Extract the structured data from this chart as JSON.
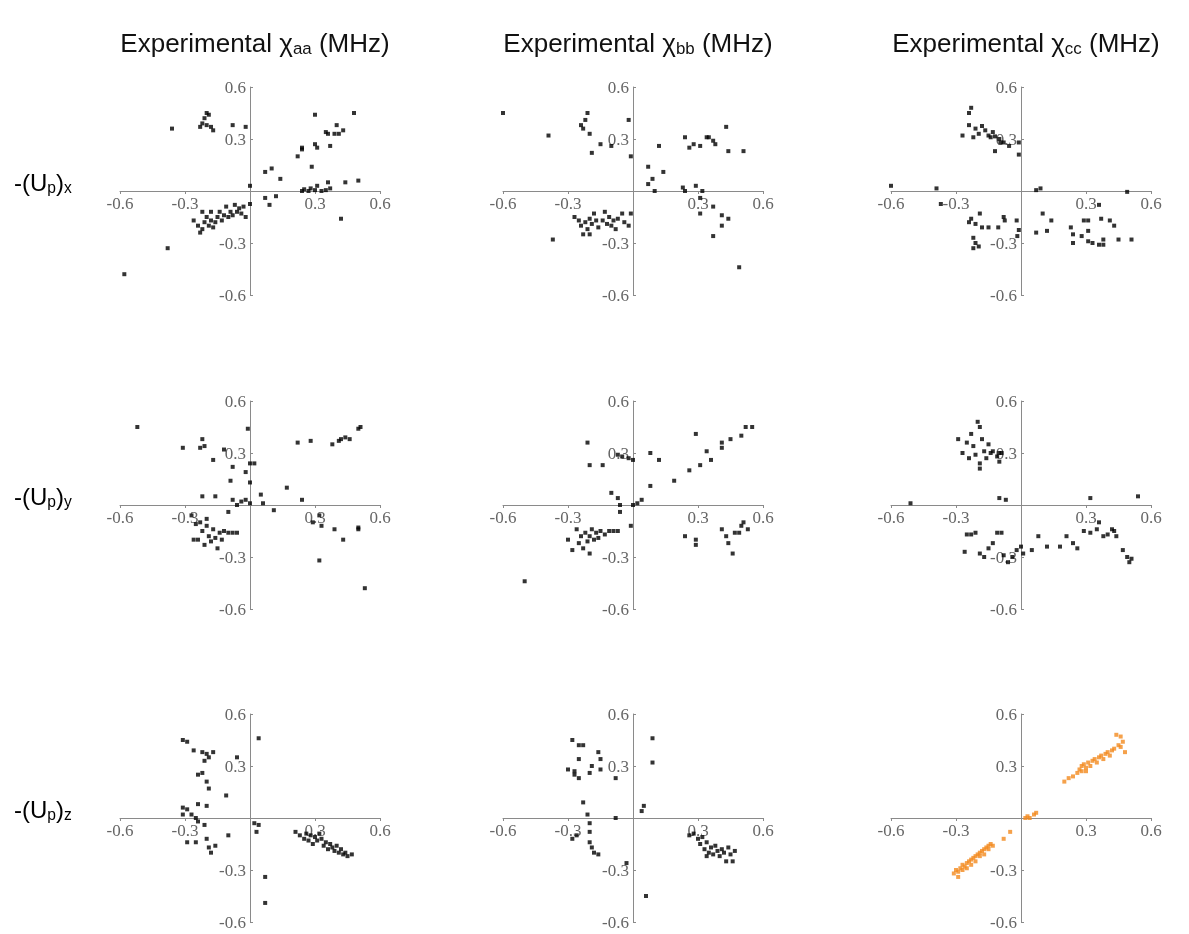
{
  "chart_data": [
    {
      "type": "scatter",
      "title": "Experimental χ$_{aa}$ (MHz)",
      "ylabel": "-(U$_{p}$)$_{x}$",
      "color": "#000000",
      "marker": "square",
      "xlim": [
        -0.6,
        0.6
      ],
      "ylim": [
        -0.6,
        0.6
      ],
      "xticks": [
        -0.6,
        -0.3,
        0.3,
        0.6
      ],
      "yticks": [
        -0.6,
        -0.3,
        0.3,
        0.6
      ],
      "x": [
        -0.36,
        -0.2,
        -0.19,
        -0.21,
        -0.22,
        -0.23,
        -0.2,
        -0.18,
        -0.17,
        -0.08,
        -0.02,
        0.3,
        0.48,
        0.35,
        0.4,
        0.36,
        0.39,
        0.41,
        0.43,
        0.3,
        0.31,
        0.37,
        0.22,
        0.24,
        0.24,
        0.285,
        0.07,
        0.1,
        0.14,
        0.0,
        0.24,
        0.25,
        0.27,
        0.28,
        0.3,
        0.31,
        0.33,
        0.35,
        0.36,
        0.37,
        0.44,
        0.5,
        0.42,
        0.07,
        0.12,
        0.09,
        0.0,
        -0.02,
        -0.58,
        -0.38,
        -0.26,
        -0.24,
        -0.23,
        -0.22,
        -0.21,
        -0.2,
        -0.19,
        -0.18,
        -0.17,
        -0.16,
        -0.15,
        -0.14,
        -0.13,
        -0.12,
        -0.11,
        -0.1,
        -0.09,
        -0.08,
        -0.07,
        -0.06,
        -0.05,
        -0.04,
        -0.03,
        -0.22,
        -0.18
      ],
      "values": [
        0.36,
        0.45,
        0.44,
        0.42,
        0.39,
        0.37,
        0.38,
        0.37,
        0.35,
        0.38,
        0.37,
        0.44,
        0.45,
        0.34,
        0.38,
        0.33,
        0.33,
        0.33,
        0.35,
        0.27,
        0.25,
        0.26,
        0.2,
        0.24,
        0.25,
        0.14,
        0.11,
        0.13,
        0.07,
        0.03,
        0.0,
        0.01,
        0.0,
        0.015,
        0.005,
        0.03,
        0.0,
        0.005,
        0.05,
        0.015,
        0.05,
        0.06,
        -0.16,
        -0.04,
        -0.03,
        -0.08,
        -0.075,
        -0.15,
        -0.48,
        -0.33,
        -0.17,
        -0.2,
        -0.24,
        -0.22,
        -0.18,
        -0.15,
        -0.2,
        -0.17,
        -0.21,
        -0.18,
        -0.15,
        -0.12,
        -0.17,
        -0.14,
        -0.09,
        -0.15,
        -0.12,
        -0.14,
        -0.08,
        -0.12,
        -0.1,
        -0.13,
        -0.09,
        -0.12,
        -0.12
      ]
    },
    {
      "type": "scatter",
      "title": "Experimental χ$_{bb}$ (MHz)",
      "color": "#000000",
      "marker": "square",
      "xlim": [
        -0.6,
        0.6
      ],
      "ylim": [
        -0.6,
        0.6
      ],
      "xticks": [
        -0.6,
        -0.3,
        0.3,
        0.6
      ],
      "yticks": [
        -0.6,
        -0.3,
        0.3,
        0.6
      ],
      "x": [
        -0.6,
        -0.39,
        -0.21,
        -0.22,
        -0.24,
        -0.23,
        -0.2,
        -0.15,
        -0.1,
        -0.19,
        -0.02,
        -0.01,
        0.07,
        0.14,
        0.09,
        0.07,
        0.1,
        0.12,
        0.24,
        0.26,
        0.28,
        0.31,
        0.34,
        0.35,
        0.37,
        0.38,
        0.43,
        0.44,
        0.51,
        0.23,
        0.24,
        0.29,
        0.32,
        0.31,
        0.31,
        0.37,
        0.41,
        0.44,
        0.41,
        0.37,
        0.49,
        -0.37,
        -0.27,
        -0.25,
        -0.24,
        -0.23,
        -0.22,
        -0.21,
        -0.2,
        -0.19,
        -0.18,
        -0.17,
        -0.16,
        -0.14,
        -0.13,
        -0.12,
        -0.11,
        -0.1,
        -0.09,
        -0.08,
        -0.07,
        -0.05,
        -0.04,
        -0.02,
        -0.01,
        -0.2
      ],
      "values": [
        0.45,
        0.32,
        0.45,
        0.41,
        0.38,
        0.36,
        0.33,
        0.27,
        0.26,
        0.22,
        0.41,
        0.2,
        0.14,
        0.11,
        0.07,
        0.04,
        0.0,
        0.26,
        0.31,
        0.25,
        0.27,
        0.26,
        0.31,
        0.31,
        0.29,
        0.27,
        0.37,
        0.23,
        0.23,
        0.02,
        0.0,
        0.03,
        0.0,
        -0.04,
        -0.13,
        -0.09,
        -0.14,
        -0.16,
        -0.2,
        -0.26,
        -0.44,
        -0.28,
        -0.15,
        -0.17,
        -0.2,
        -0.25,
        -0.18,
        -0.22,
        -0.16,
        -0.19,
        -0.13,
        -0.17,
        -0.21,
        -0.17,
        -0.12,
        -0.19,
        -0.15,
        -0.2,
        -0.17,
        -0.22,
        -0.16,
        -0.13,
        -0.18,
        -0.2,
        -0.13,
        -0.25
      ]
    },
    {
      "type": "scatter",
      "title": "Experimental χ$_{cc}$ (MHz)",
      "color": "#000000",
      "marker": "square",
      "xlim": [
        -0.6,
        0.6
      ],
      "ylim": [
        -0.6,
        0.6
      ],
      "xticks": [
        -0.6,
        -0.3,
        0.3,
        0.6
      ],
      "yticks": [
        -0.6,
        -0.3,
        0.3,
        0.6
      ],
      "x": [
        -0.6,
        -0.39,
        0.49,
        -0.23,
        -0.24,
        -0.27,
        -0.24,
        -0.21,
        -0.195,
        -0.18,
        -0.165,
        -0.15,
        -0.13,
        -0.12,
        -0.1,
        -0.08,
        -0.055,
        -0.12,
        -0.01,
        -0.01,
        -0.22,
        -0.14,
        -0.095,
        0.07,
        0.09,
        0.1,
        0.14,
        0.07,
        0.12,
        0.23,
        0.24,
        0.24,
        0.28,
        0.29,
        0.31,
        0.31,
        0.31,
        0.33,
        0.36,
        0.38,
        0.38,
        0.37,
        0.41,
        0.43,
        0.45,
        0.51,
        0.36,
        -0.37,
        -0.19,
        -0.23,
        -0.24,
        -0.21,
        -0.18,
        -0.15,
        -0.105,
        -0.08,
        -0.075,
        -0.02,
        -0.01,
        -0.017,
        -0.22,
        -0.21,
        -0.22,
        -0.195
      ],
      "values": [
        0.03,
        0.015,
        -0.005,
        0.48,
        0.45,
        0.32,
        0.38,
        0.36,
        0.33,
        0.375,
        0.35,
        0.32,
        0.34,
        0.315,
        0.3,
        0.28,
        0.26,
        0.23,
        0.28,
        0.21,
        0.31,
        0.31,
        0.28,
        0.005,
        0.015,
        -0.13,
        -0.17,
        -0.24,
        -0.23,
        -0.21,
        -0.25,
        -0.3,
        -0.26,
        -0.17,
        -0.17,
        -0.23,
        -0.29,
        -0.3,
        -0.31,
        -0.31,
        -0.28,
        -0.16,
        -0.17,
        -0.2,
        -0.28,
        -0.28,
        -0.08,
        -0.075,
        -0.13,
        -0.16,
        -0.18,
        -0.19,
        -0.21,
        -0.21,
        -0.21,
        -0.15,
        -0.17,
        -0.17,
        -0.225,
        -0.26,
        -0.27,
        -0.3,
        -0.33,
        -0.32
      ]
    },
    {
      "type": "scatter",
      "ylabel": "-(U$_{p}$)$_{y}$",
      "color": "#000000",
      "marker": "square",
      "xlim": [
        -0.6,
        0.6
      ],
      "ylim": [
        -0.6,
        0.6
      ],
      "xticks": [
        -0.6,
        -0.3,
        0.3,
        0.6
      ],
      "yticks": [
        -0.6,
        -0.3,
        0.3,
        0.6
      ],
      "x": [
        -0.52,
        -0.31,
        -0.22,
        -0.21,
        -0.23,
        -0.17,
        -0.08,
        -0.12,
        -0.01,
        0.0,
        0.02,
        -0.02,
        -0.09,
        0.0,
        0.05,
        -0.22,
        -0.16,
        -0.08,
        -0.06,
        -0.04,
        -0.02,
        0.0,
        -0.1,
        0.06,
        0.11,
        0.17,
        0.24,
        0.22,
        0.28,
        0.38,
        0.42,
        0.44,
        0.41,
        0.5,
        0.51,
        0.46,
        0.32,
        0.33,
        0.39,
        0.43,
        0.5,
        0.5,
        0.32,
        0.53,
        0.29,
        -0.27,
        -0.25,
        -0.24,
        -0.22,
        -0.21,
        -0.2,
        -0.19,
        -0.18,
        -0.17,
        -0.16,
        -0.15,
        -0.14,
        -0.13,
        -0.12,
        -0.1,
        -0.08,
        -0.06,
        -0.26,
        -0.23,
        -0.2
      ],
      "values": [
        0.45,
        0.33,
        0.38,
        0.34,
        0.33,
        0.26,
        0.22,
        0.32,
        0.44,
        0.24,
        0.24,
        0.19,
        0.14,
        0.13,
        0.06,
        0.05,
        0.05,
        0.03,
        0.0,
        0.02,
        0.03,
        0.01,
        -0.04,
        0.01,
        -0.03,
        0.1,
        0.03,
        0.36,
        0.37,
        0.35,
        0.38,
        0.39,
        0.37,
        0.44,
        0.45,
        0.38,
        -0.06,
        -0.12,
        -0.14,
        -0.2,
        -0.14,
        -0.13,
        -0.32,
        -0.48,
        -0.1,
        -0.06,
        -0.11,
        -0.2,
        -0.15,
        -0.23,
        -0.12,
        -0.18,
        -0.21,
        -0.14,
        -0.19,
        -0.25,
        -0.16,
        -0.2,
        -0.15,
        -0.16,
        -0.16,
        -0.16,
        -0.2,
        -0.1,
        -0.08
      ]
    },
    {
      "type": "scatter",
      "color": "#000000",
      "marker": "square",
      "xlim": [
        -0.6,
        0.6
      ],
      "ylim": [
        -0.6,
        0.6
      ],
      "xticks": [
        -0.6,
        -0.3,
        0.3,
        0.6
      ],
      "yticks": [
        -0.6,
        -0.3,
        0.3,
        0.6
      ],
      "x": [
        -0.5,
        -0.21,
        -0.2,
        -0.14,
        -0.07,
        -0.05,
        -0.02,
        0.0,
        0.08,
        0.12,
        -0.1,
        -0.07,
        -0.06,
        -0.06,
        0.0,
        0.02,
        0.04,
        -0.01,
        0.08,
        0.19,
        0.26,
        0.29,
        0.31,
        0.34,
        0.36,
        0.41,
        0.41,
        0.45,
        0.5,
        0.52,
        0.55,
        0.24,
        0.29,
        0.29,
        0.41,
        0.43,
        0.44,
        0.46,
        0.47,
        0.5,
        0.51,
        0.53,
        0.49,
        -0.3,
        -0.28,
        -0.26,
        -0.25,
        -0.24,
        -0.23,
        -0.22,
        -0.21,
        -0.2,
        -0.19,
        -0.18,
        -0.17,
        -0.16,
        -0.15,
        -0.13,
        -0.11,
        -0.09,
        -0.07,
        -0.2
      ],
      "values": [
        -0.44,
        0.36,
        0.23,
        0.23,
        0.29,
        0.28,
        0.27,
        0.26,
        0.3,
        0.26,
        0.07,
        0.04,
        0.0,
        -0.04,
        0.0,
        0.01,
        0.03,
        -0.12,
        0.11,
        0.14,
        0.2,
        0.41,
        0.23,
        0.31,
        0.26,
        0.33,
        0.36,
        0.38,
        0.4,
        0.45,
        0.45,
        -0.18,
        -0.2,
        -0.23,
        -0.14,
        -0.18,
        -0.22,
        -0.28,
        -0.16,
        -0.12,
        -0.1,
        -0.14,
        -0.16,
        -0.2,
        -0.26,
        -0.14,
        -0.22,
        -0.18,
        -0.25,
        -0.16,
        -0.21,
        -0.18,
        -0.14,
        -0.2,
        -0.16,
        -0.19,
        -0.15,
        -0.17,
        -0.15,
        -0.15,
        -0.15,
        -0.28
      ]
    },
    {
      "type": "scatter",
      "color": "#000000",
      "marker": "square",
      "xlim": [
        -0.6,
        0.6
      ],
      "ylim": [
        -0.6,
        0.6
      ],
      "xticks": [
        -0.6,
        -0.3,
        0.3,
        0.6
      ],
      "yticks": [
        -0.6,
        -0.3,
        0.3,
        0.6
      ],
      "x": [
        -0.51,
        -0.1,
        -0.07,
        0.32,
        0.54,
        -0.29,
        -0.27,
        -0.25,
        -0.24,
        -0.23,
        -0.22,
        -0.21,
        -0.2,
        -0.19,
        -0.19,
        -0.18,
        -0.17,
        -0.16,
        -0.15,
        -0.14,
        -0.13,
        -0.11,
        -0.1,
        -0.09,
        -0.19,
        -0.1,
        -0.26,
        -0.25,
        -0.23,
        -0.21,
        -0.19,
        -0.17,
        -0.15,
        -0.13,
        -0.11,
        -0.09,
        -0.08,
        -0.06,
        -0.04,
        -0.02,
        0.0,
        0.01,
        0.05,
        0.08,
        0.12,
        0.18,
        0.21,
        0.24,
        0.26,
        0.29,
        0.32,
        0.35,
        0.38,
        0.4,
        0.42,
        0.43,
        0.44,
        0.47,
        0.49,
        0.5,
        0.51,
        0.36
      ],
      "values": [
        0.01,
        0.04,
        0.03,
        0.04,
        0.05,
        0.38,
        0.3,
        0.36,
        0.27,
        0.41,
        0.34,
        0.29,
        0.48,
        0.45,
        0.24,
        0.38,
        0.31,
        0.27,
        0.35,
        0.3,
        0.31,
        0.28,
        0.3,
        0.3,
        0.21,
        0.25,
        -0.27,
        -0.17,
        -0.17,
        -0.16,
        -0.28,
        -0.3,
        -0.25,
        -0.22,
        -0.16,
        -0.16,
        -0.29,
        -0.33,
        -0.3,
        -0.26,
        -0.24,
        -0.28,
        -0.26,
        -0.18,
        -0.24,
        -0.24,
        -0.18,
        -0.22,
        -0.25,
        -0.15,
        -0.16,
        -0.14,
        -0.18,
        -0.17,
        -0.14,
        -0.15,
        -0.18,
        -0.26,
        -0.3,
        -0.33,
        -0.31,
        -0.1
      ]
    },
    {
      "type": "scatter",
      "ylabel": "-(U$_{p}$)$_{z}$",
      "color": "#000000",
      "marker": "square",
      "xlim": [
        -0.6,
        0.6
      ],
      "ylim": [
        -0.6,
        0.6
      ],
      "xticks": [
        -0.6,
        -0.3,
        0.3,
        0.6
      ],
      "yticks": [
        -0.6,
        -0.3,
        0.3,
        0.6
      ],
      "x": [
        -0.31,
        -0.29,
        -0.26,
        -0.22,
        -0.2,
        -0.19,
        -0.17,
        -0.21,
        -0.06,
        0.04,
        -0.11,
        -0.24,
        -0.22,
        -0.2,
        -0.19,
        -0.24,
        -0.2,
        -0.31,
        -0.29,
        -0.27,
        -0.25,
        -0.31,
        -0.24,
        -0.21,
        -0.29,
        -0.25,
        -0.2,
        -0.19,
        -0.18,
        -0.16,
        -0.1,
        0.02,
        0.04,
        0.03,
        0.07,
        0.07,
        0.21,
        0.23,
        0.25,
        0.26,
        0.27,
        0.28,
        0.29,
        0.3,
        0.31,
        0.32,
        0.33,
        0.34,
        0.35,
        0.36,
        0.37,
        0.38,
        0.39,
        0.4,
        0.41,
        0.42,
        0.43,
        0.44,
        0.45,
        0.47
      ],
      "values": [
        0.45,
        0.44,
        0.39,
        0.38,
        0.37,
        0.35,
        0.38,
        0.33,
        0.35,
        0.46,
        0.13,
        0.25,
        0.26,
        0.21,
        0.17,
        0.08,
        0.07,
        0.06,
        0.05,
        0.02,
        0.0,
        0.02,
        -0.02,
        -0.04,
        -0.14,
        -0.14,
        -0.12,
        -0.17,
        -0.2,
        -0.16,
        -0.1,
        -0.03,
        -0.04,
        -0.08,
        -0.34,
        -0.49,
        -0.08,
        -0.1,
        -0.12,
        -0.09,
        -0.13,
        -0.1,
        -0.15,
        -0.11,
        -0.13,
        -0.09,
        -0.12,
        -0.16,
        -0.14,
        -0.18,
        -0.15,
        -0.17,
        -0.19,
        -0.16,
        -0.2,
        -0.18,
        -0.21,
        -0.2,
        -0.22,
        -0.21
      ]
    },
    {
      "type": "scatter",
      "color": "#000000",
      "marker": "square",
      "xlim": [
        -0.6,
        0.6
      ],
      "ylim": [
        -0.6,
        0.6
      ],
      "xticks": [
        -0.6,
        -0.3,
        0.3,
        0.6
      ],
      "yticks": [
        -0.6,
        -0.3,
        0.3,
        0.6
      ],
      "x": [
        -0.28,
        -0.25,
        -0.23,
        -0.25,
        -0.16,
        -0.15,
        -0.19,
        -0.3,
        -0.27,
        -0.25,
        -0.27,
        -0.2,
        -0.15,
        -0.08,
        0.09,
        0.09,
        0.05,
        0.04,
        -0.08,
        -0.23,
        -0.21,
        -0.2,
        -0.28,
        -0.26,
        -0.2,
        -0.2,
        -0.19,
        -0.18,
        -0.16,
        -0.03,
        0.06,
        0.26,
        0.28,
        0.3,
        0.31,
        0.32,
        0.33,
        0.34,
        0.35,
        0.36,
        0.37,
        0.38,
        0.39,
        0.4,
        0.41,
        0.42,
        0.43,
        0.44,
        0.45,
        0.46,
        0.47,
        0.34
      ],
      "values": [
        0.45,
        0.42,
        0.42,
        0.34,
        0.38,
        0.34,
        0.3,
        0.28,
        0.27,
        0.23,
        0.25,
        0.26,
        0.28,
        0.23,
        0.46,
        0.32,
        0.07,
        0.04,
        0.0,
        0.09,
        0.02,
        -0.03,
        -0.12,
        -0.1,
        -0.08,
        -0.14,
        -0.17,
        -0.2,
        -0.21,
        -0.26,
        -0.45,
        -0.1,
        -0.09,
        -0.12,
        -0.15,
        -0.11,
        -0.18,
        -0.14,
        -0.2,
        -0.17,
        -0.21,
        -0.16,
        -0.19,
        -0.22,
        -0.18,
        -0.2,
        -0.25,
        -0.17,
        -0.21,
        -0.25,
        -0.19,
        -0.22
      ]
    },
    {
      "type": "scatter",
      "color": "#f28a1e",
      "marker": "square",
      "xlim": [
        -0.6,
        0.6
      ],
      "ylim": [
        -0.6,
        0.6
      ],
      "xticks": [
        -0.6,
        -0.3,
        0.3,
        0.6
      ],
      "yticks": [
        -0.6,
        -0.3,
        0.3,
        0.6
      ],
      "x": [
        -0.31,
        -0.3,
        -0.29,
        -0.28,
        -0.27,
        -0.27,
        -0.26,
        -0.25,
        -0.25,
        -0.24,
        -0.23,
        -0.23,
        -0.22,
        -0.21,
        -0.21,
        -0.2,
        -0.19,
        -0.19,
        -0.18,
        -0.17,
        -0.17,
        -0.16,
        -0.15,
        -0.15,
        -0.14,
        -0.13,
        -0.29,
        -0.08,
        -0.05,
        0.02,
        0.03,
        0.04,
        0.06,
        0.07,
        0.2,
        0.22,
        0.24,
        0.26,
        0.27,
        0.28,
        0.28,
        0.29,
        0.3,
        0.31,
        0.32,
        0.33,
        0.34,
        0.35,
        0.36,
        0.37,
        0.38,
        0.39,
        0.4,
        0.41,
        0.42,
        0.43,
        0.44,
        0.45,
        0.46,
        0.46,
        0.47,
        0.48,
        0.3
      ],
      "values": [
        -0.32,
        -0.3,
        -0.31,
        -0.29,
        -0.3,
        -0.27,
        -0.28,
        -0.26,
        -0.29,
        -0.25,
        -0.27,
        -0.24,
        -0.23,
        -0.25,
        -0.22,
        -0.21,
        -0.22,
        -0.2,
        -0.19,
        -0.21,
        -0.18,
        -0.17,
        -0.18,
        -0.16,
        -0.15,
        -0.16,
        -0.34,
        -0.12,
        -0.08,
        0.0,
        0.01,
        0.0,
        0.02,
        0.03,
        0.21,
        0.23,
        0.24,
        0.26,
        0.28,
        0.3,
        0.27,
        0.31,
        0.29,
        0.32,
        0.3,
        0.33,
        0.34,
        0.32,
        0.35,
        0.36,
        0.34,
        0.37,
        0.38,
        0.36,
        0.39,
        0.4,
        0.48,
        0.42,
        0.47,
        0.41,
        0.44,
        0.38,
        0.27
      ]
    }
  ]
}
